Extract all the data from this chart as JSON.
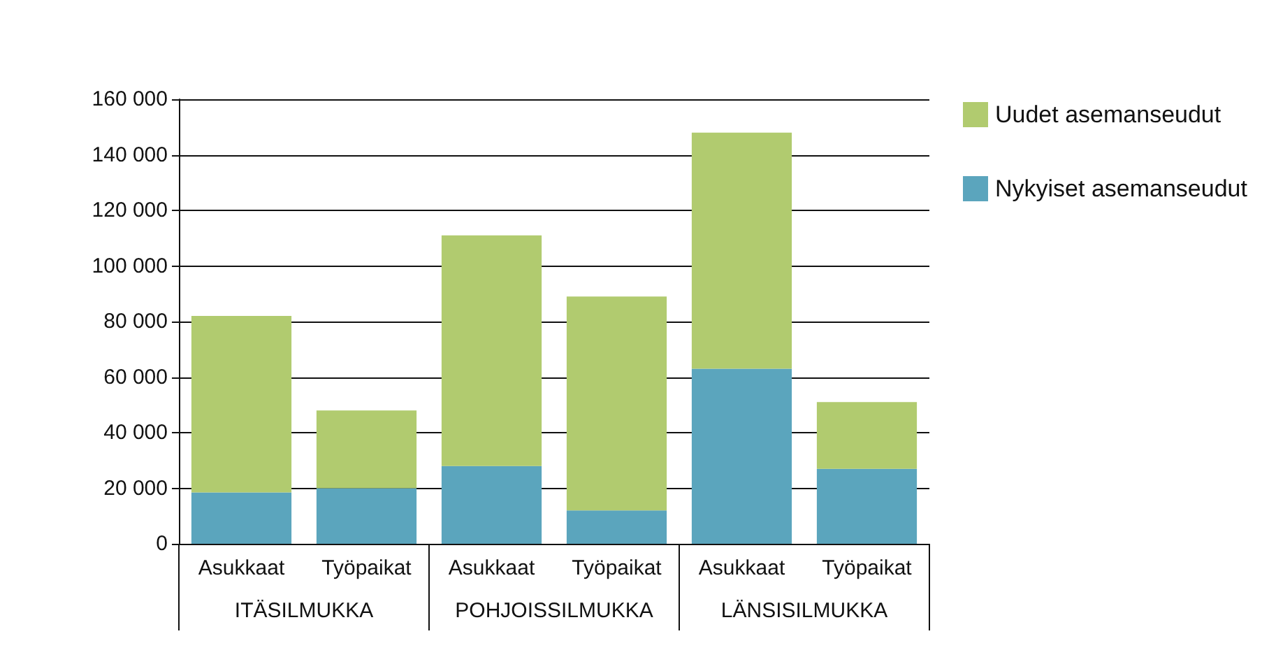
{
  "chart_data": {
    "type": "bar",
    "stacked": true,
    "categories": [
      "Asukkaat",
      "Työpaikat",
      "Asukkaat",
      "Työpaikat",
      "Asukkaat",
      "Työpaikat"
    ],
    "annotations": [
      "ITÄSILMUKKA",
      "POHJOISSILMUKKA",
      "LÄNSISILMUKKA"
    ],
    "series": [
      {
        "name": "Nykyiset asemanseudut",
        "color": "#5ba5bd",
        "values": [
          18500,
          20000,
          28000,
          12000,
          63000,
          27000
        ]
      },
      {
        "name": "Uudet asemanseudut",
        "color": "#b1cb6f",
        "values": [
          63500,
          28000,
          83000,
          77000,
          85000,
          24000
        ]
      }
    ],
    "ylim": [
      0,
      160000
    ],
    "yticks": [
      0,
      20000,
      40000,
      60000,
      80000,
      100000,
      120000,
      140000,
      160000
    ],
    "grid": "y",
    "legend": "top right"
  }
}
